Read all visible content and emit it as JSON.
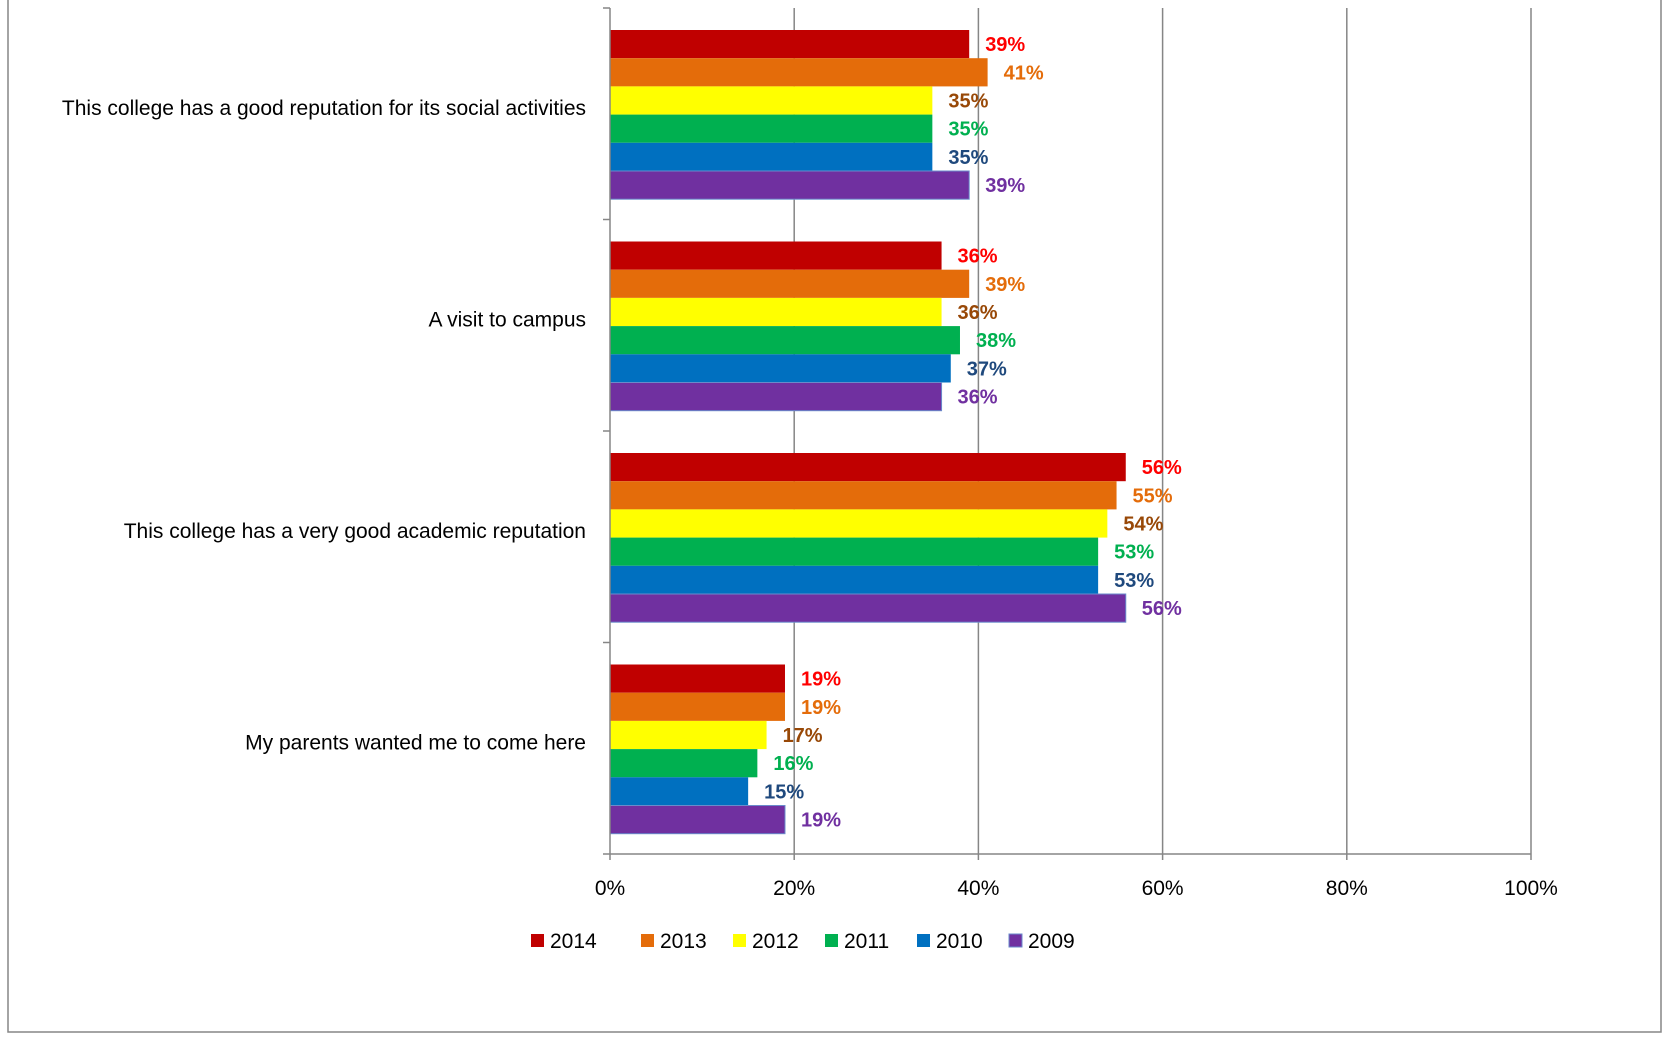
{
  "chart_data": {
    "type": "bar",
    "orientation": "horizontal",
    "categories": [
      "This college has a good reputation for its social activities",
      "A visit to campus",
      "This college has a very good academic reputation",
      "My parents wanted me to come here"
    ],
    "series": [
      {
        "name": "2014",
        "color": "#C00000",
        "label_color": "#FF0000",
        "values": [
          39,
          36,
          56,
          19
        ]
      },
      {
        "name": "2013",
        "color": "#E46C0A",
        "label_color": "#E46C0A",
        "values": [
          41,
          39,
          55,
          19
        ]
      },
      {
        "name": "2012",
        "color": "#FFFF00",
        "label_color": "#984807",
        "values": [
          35,
          36,
          54,
          17
        ]
      },
      {
        "name": "2011",
        "color": "#00B050",
        "label_color": "#00B050",
        "values": [
          35,
          38,
          53,
          16
        ]
      },
      {
        "name": "2010",
        "color": "#0070C0",
        "label_color": "#1F497D",
        "values": [
          35,
          37,
          53,
          15
        ]
      },
      {
        "name": "2009",
        "color": "#7030A0",
        "label_color": "#7030A0",
        "values": [
          39,
          36,
          56,
          19
        ]
      }
    ],
    "value_format": "{v}%",
    "xlim": [
      0,
      100
    ],
    "x_ticks": [
      "0%",
      "20%",
      "40%",
      "60%",
      "80%",
      "100%"
    ],
    "x_tick_values": [
      0,
      20,
      40,
      60,
      80,
      100
    ],
    "grid": "vertical",
    "legend_position": "bottom",
    "title": "",
    "xlabel": "",
    "ylabel": ""
  }
}
